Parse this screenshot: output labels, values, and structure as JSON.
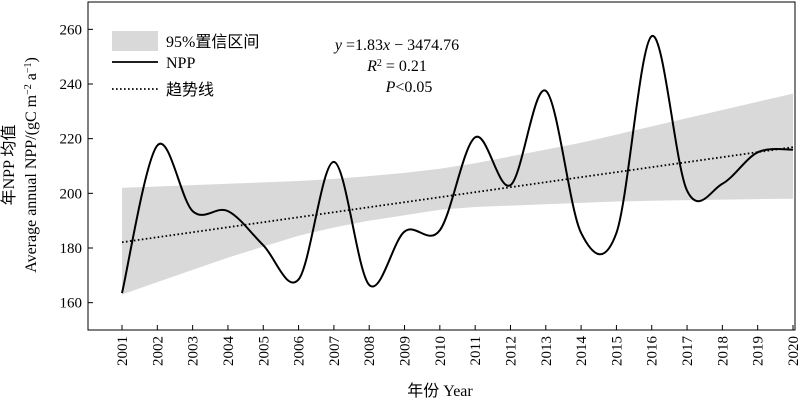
{
  "chart_data": {
    "type": "line",
    "xlabel": "年份 Year",
    "ylabel_line1": "年NPP 均值",
    "ylabel_line2": "Average annual NPP/(gC m",
    "ylabel_sup1": "−2",
    "ylabel_mid": " a",
    "ylabel_sup2": "−1",
    "ylabel_end": ")",
    "ylim": [
      150,
      270
    ],
    "yticks": [
      160,
      180,
      200,
      220,
      240,
      260
    ],
    "x": [
      "2001",
      "2002",
      "2003",
      "2004",
      "2005",
      "2006",
      "2007",
      "2008",
      "2009",
      "2010",
      "2011",
      "2012",
      "2013",
      "2014",
      "2015",
      "2016",
      "2017",
      "2018",
      "2019",
      "2020"
    ],
    "series": [
      {
        "name": "NPP",
        "values": [
          163.5,
          217.5,
          193.5,
          193.5,
          181,
          168.5,
          211.5,
          166.5,
          186,
          186.5,
          220.5,
          203,
          237.5,
          185.5,
          185.5,
          257.5,
          201,
          203.5,
          215,
          216
        ]
      },
      {
        "name": "趋势线",
        "style": "dotted",
        "values": [
          182.1,
          184.0,
          185.8,
          187.6,
          189.4,
          191.3,
          193.1,
          194.9,
          196.8,
          198.6,
          200.4,
          202.3,
          204.1,
          205.9,
          207.7,
          209.6,
          211.4,
          213.2,
          215.1,
          216.9
        ]
      }
    ],
    "confidence_band": {
      "name": "95%置信区间",
      "color": "#d9d9d9",
      "lower": [
        163.0,
        167.5,
        172.0,
        176.5,
        180.5,
        184.5,
        187.5,
        190.0,
        192.0,
        194.0,
        195.0,
        195.5,
        196.0,
        196.5,
        197.0,
        197.3,
        197.5,
        197.7,
        197.9,
        198.0
      ],
      "upper": [
        202.0,
        202.5,
        203.0,
        203.5,
        204.0,
        204.5,
        205.3,
        206.3,
        207.5,
        209.0,
        211.0,
        213.5,
        216.0,
        218.5,
        221.5,
        224.5,
        227.5,
        230.5,
        233.5,
        236.5
      ]
    },
    "annotation": {
      "eq_y": "y",
      "eq_rest": " =1.83",
      "eq_x": "x",
      "eq_tail": " − 3474.76",
      "r2_r": "R",
      "r2_sup": "2",
      "r2_rest": " = 0.21",
      "p_p": "P",
      "p_rest": "<0.05"
    },
    "legend": {
      "placement": "top-left",
      "items": [
        "95%置信区间",
        "NPP",
        "趋势线"
      ]
    },
    "grid": false
  }
}
